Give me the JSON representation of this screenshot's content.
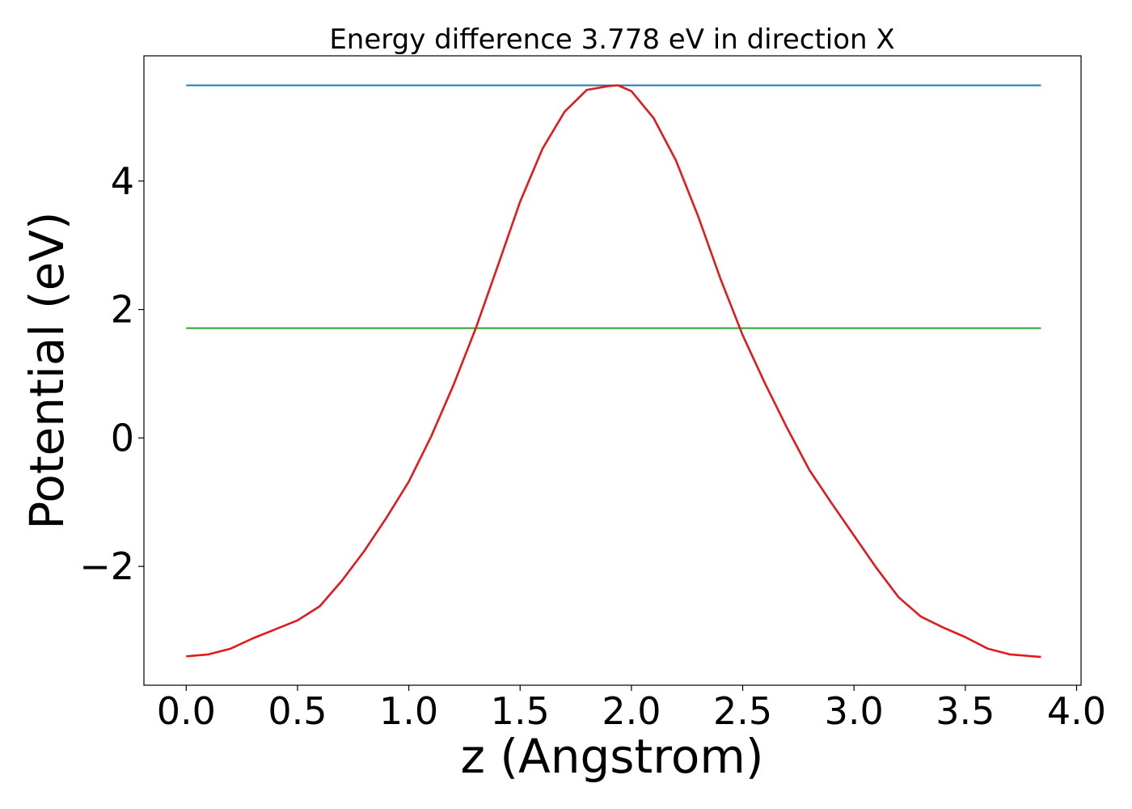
{
  "chart_data": {
    "type": "line",
    "title": "Energy difference 3.778 eV in direction X",
    "xlabel": "z (Angstrom)",
    "ylabel": "Potential (eV)",
    "xlim": [
      -0.19,
      4.02
    ],
    "ylim": [
      -3.85,
      5.95
    ],
    "x_ticks": [
      0.0,
      0.5,
      1.0,
      1.5,
      2.0,
      2.5,
      3.0,
      3.5,
      4.0
    ],
    "x_tick_labels": [
      "0.0",
      "0.5",
      "1.0",
      "1.5",
      "2.0",
      "2.5",
      "3.0",
      "3.5",
      "4.0"
    ],
    "y_ticks": [
      -2,
      0,
      2,
      4
    ],
    "y_tick_labels": [
      "−2",
      "0",
      "2",
      "4"
    ],
    "grid": false,
    "colors": {
      "potential": "#e31a1c",
      "max": "#1f77b4",
      "mean": "#2ca02c"
    },
    "series": [
      {
        "x": [
          0.0,
          0.1,
          0.2,
          0.3,
          0.4,
          0.5,
          0.6,
          0.7,
          0.8,
          0.9,
          1.0,
          1.1,
          1.2,
          1.3,
          1.4,
          1.5,
          1.6,
          1.7,
          1.8,
          1.9,
          1.94,
          2.0,
          2.1,
          2.2,
          2.3,
          2.4,
          2.5,
          2.6,
          2.7,
          2.8,
          2.9,
          3.0,
          3.1,
          3.2,
          3.3,
          3.4,
          3.5,
          3.6,
          3.7,
          3.84
        ],
        "values": [
          -3.4,
          -3.37,
          -3.28,
          -3.12,
          -2.98,
          -2.84,
          -2.62,
          -2.22,
          -1.76,
          -1.24,
          -0.68,
          0.02,
          0.82,
          1.7,
          2.68,
          3.68,
          4.5,
          5.08,
          5.42,
          5.48,
          5.49,
          5.4,
          4.98,
          4.32,
          3.45,
          2.48,
          1.6,
          0.85,
          0.15,
          -0.5,
          -1.02,
          -1.52,
          -2.02,
          -2.48,
          -2.78,
          -2.95,
          -3.1,
          -3.28,
          -3.37,
          -3.41
        ]
      },
      {
        "x": [
          0.0,
          3.84
        ],
        "values": [
          5.49,
          5.49
        ]
      },
      {
        "x": [
          0.0,
          3.84
        ],
        "values": [
          1.71,
          1.71
        ]
      }
    ]
  }
}
